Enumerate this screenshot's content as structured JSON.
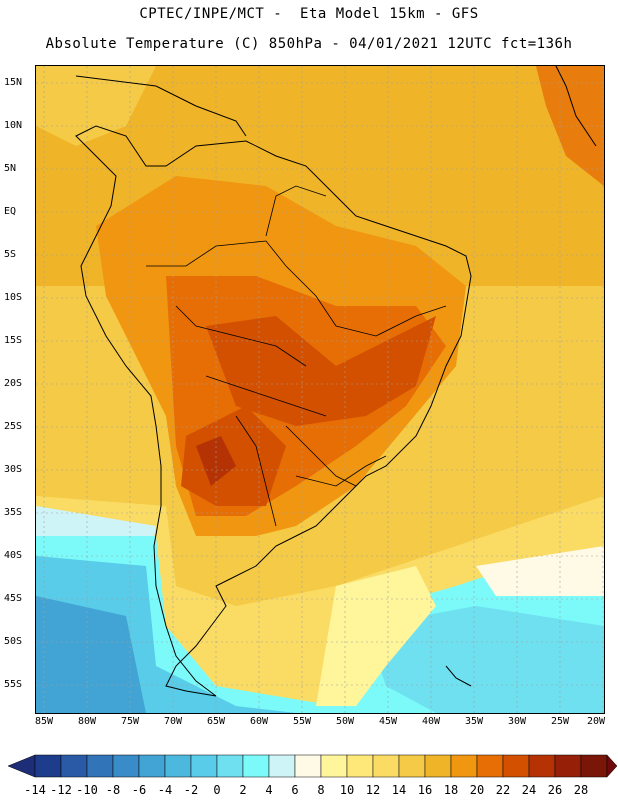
{
  "header": {
    "line1": "CPTEC/INPE/MCT -  Eta Model 15km - GFS",
    "line2": "Absolute Temperature (C) 850hPa - 04/01/2021 12UTC fct=136h"
  },
  "map": {
    "lat_labels": [
      "15N",
      "10N",
      "5N",
      "EQ",
      "5S",
      "10S",
      "15S",
      "20S",
      "25S",
      "30S",
      "35S",
      "40S",
      "45S",
      "50S",
      "55S"
    ],
    "lon_labels": [
      "85W",
      "80W",
      "75W",
      "70W",
      "65W",
      "60W",
      "55W",
      "50W",
      "45W",
      "40W",
      "35W",
      "30W",
      "25W",
      "20W"
    ]
  },
  "legend": {
    "labels": [
      "-14",
      "-12",
      "-10",
      "-8",
      "-6",
      "-4",
      "-2",
      "0",
      "2",
      "4",
      "6",
      "8",
      "10",
      "12",
      "14",
      "16",
      "18",
      "20",
      "22",
      "24",
      "26",
      "28"
    ],
    "colors": [
      "#1e3c8c",
      "#2a5aa6",
      "#3274b8",
      "#3a8cc8",
      "#42a4d4",
      "#4cb8de",
      "#58cce8",
      "#6ee0f0",
      "#7cfafa",
      "#cff4f8",
      "#fffae6",
      "#fff59a",
      "#ffe87a",
      "#fadc64",
      "#f5ca46",
      "#f0b428",
      "#f09610",
      "#e66e05",
      "#d25000",
      "#b43204",
      "#962007",
      "#7a1608"
    ],
    "low_end_color": "#1e2d78",
    "high_end_color": "#6e0a0c"
  }
}
